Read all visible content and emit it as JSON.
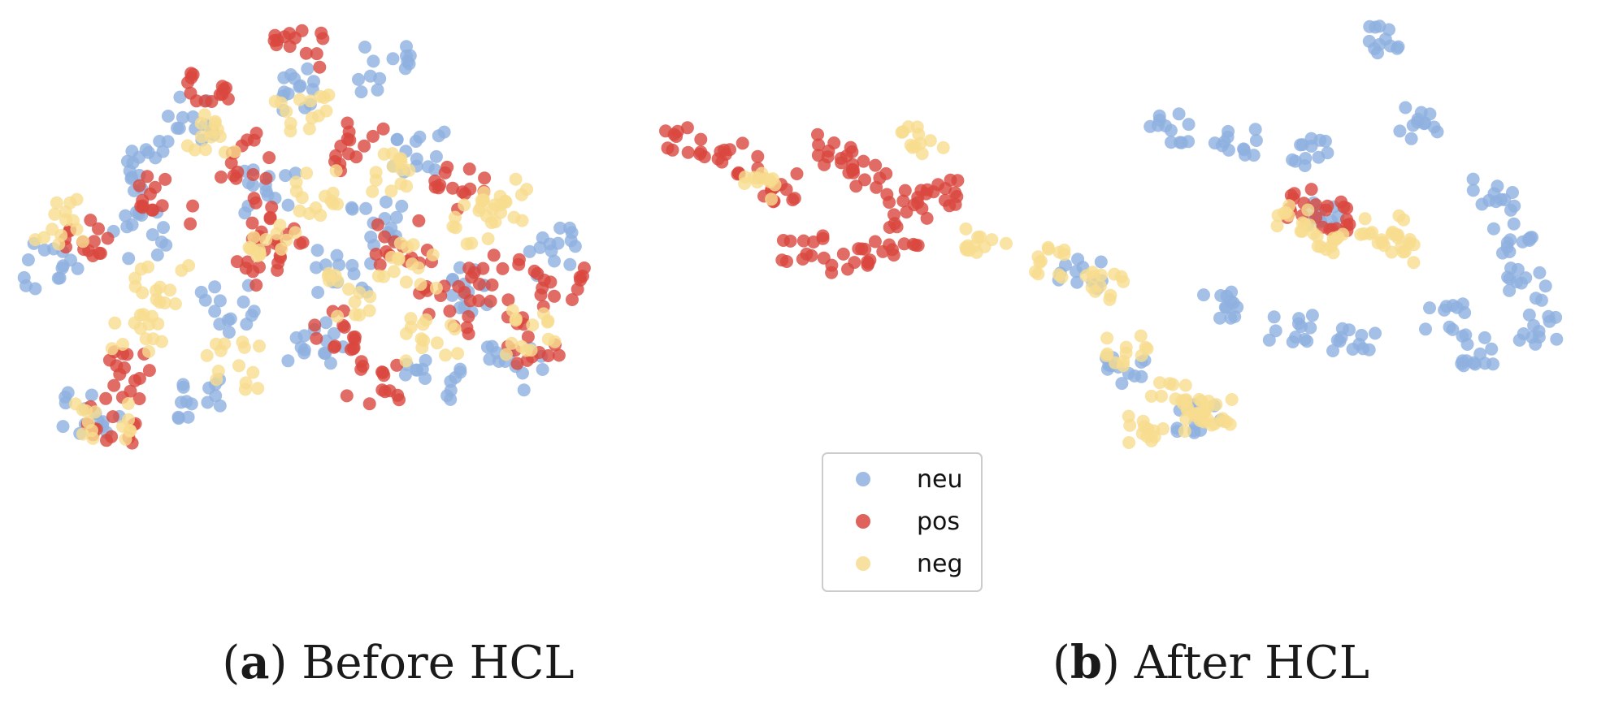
{
  "colors": {
    "neu": "#8fb0e0",
    "pos": "#d9473f",
    "neg": "#f7dc8f"
  },
  "legend": [
    {
      "key": "neu",
      "label": "neu"
    },
    {
      "key": "pos",
      "label": "pos"
    },
    {
      "key": "neg",
      "label": "neg"
    }
  ],
  "captions": {
    "a": {
      "letter": "a",
      "text": "Before HCL"
    },
    "b": {
      "letter": "b",
      "text": "After HCL"
    }
  },
  "chart_data": [
    {
      "type": "scatter",
      "panel": "a",
      "series": [
        {
          "name": "neu",
          "x": [
            0.05,
            0.12,
            0.2,
            0.28,
            0.35,
            0.42,
            0.5,
            0.6,
            0.68,
            0.76,
            0.84,
            0.9,
            0.3,
            0.45,
            0.55,
            0.7,
            0.22,
            0.62
          ],
          "y": [
            0.45,
            0.12,
            0.52,
            0.78,
            0.35,
            0.62,
            0.28,
            0.55,
            0.7,
            0.4,
            0.22,
            0.48,
            0.15,
            0.85,
            0.44,
            0.2,
            0.66,
            0.9
          ]
        },
        {
          "name": "pos",
          "x": [
            0.1,
            0.18,
            0.25,
            0.33,
            0.4,
            0.47,
            0.52,
            0.58,
            0.65,
            0.72,
            0.8,
            0.87,
            0.92,
            0.15,
            0.38,
            0.6,
            0.75,
            0.44
          ],
          "y": [
            0.5,
            0.2,
            0.6,
            0.85,
            0.45,
            0.95,
            0.3,
            0.72,
            0.5,
            0.35,
            0.42,
            0.28,
            0.4,
            0.1,
            0.7,
            0.18,
            0.62,
            0.55
          ]
        },
        {
          "name": "neg",
          "x": [
            0.06,
            0.14,
            0.24,
            0.32,
            0.43,
            0.5,
            0.57,
            0.63,
            0.7,
            0.78,
            0.86,
            0.2,
            0.48,
            0.66,
            0.36,
            0.82
          ],
          "y": [
            0.55,
            0.1,
            0.4,
            0.75,
            0.5,
            0.62,
            0.38,
            0.65,
            0.28,
            0.55,
            0.3,
            0.3,
            0.8,
            0.45,
            0.22,
            0.6
          ]
        }
      ]
    },
    {
      "type": "scatter",
      "panel": "b",
      "series": [
        {
          "name": "neu",
          "x": [
            0.78,
            0.55,
            0.62,
            0.7,
            0.82,
            0.9,
            0.92,
            0.94,
            0.95,
            0.6,
            0.68,
            0.45,
            0.5,
            0.85,
            0.88,
            0.58,
            0.72,
            0.75
          ],
          "y": [
            0.95,
            0.75,
            0.72,
            0.7,
            0.76,
            0.6,
            0.5,
            0.4,
            0.3,
            0.35,
            0.3,
            0.42,
            0.2,
            0.32,
            0.25,
            0.1,
            0.55,
            0.28
          ]
        },
        {
          "name": "pos",
          "x": [
            0.02,
            0.08,
            0.12,
            0.18,
            0.22,
            0.26,
            0.3,
            0.15,
            0.2,
            0.25,
            0.7,
            0.72
          ],
          "y": [
            0.72,
            0.68,
            0.62,
            0.7,
            0.65,
            0.58,
            0.6,
            0.48,
            0.45,
            0.5,
            0.58,
            0.55
          ]
        },
        {
          "name": "neg",
          "x": [
            0.1,
            0.28,
            0.35,
            0.42,
            0.48,
            0.5,
            0.55,
            0.6,
            0.68,
            0.72,
            0.78,
            0.8,
            0.52,
            0.58
          ],
          "y": [
            0.62,
            0.72,
            0.5,
            0.45,
            0.4,
            0.25,
            0.15,
            0.12,
            0.55,
            0.5,
            0.52,
            0.48,
            0.08,
            0.1
          ]
        }
      ]
    }
  ]
}
